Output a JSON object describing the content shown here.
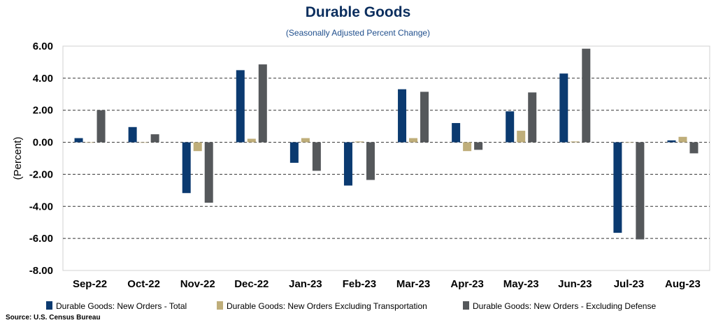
{
  "chart_data": {
    "type": "bar",
    "title": "Durable Goods",
    "subtitle": "(Seasonally Adjusted Percent Change)",
    "ylabel": "(Percent)",
    "xlabel": "",
    "ylim": [
      -8,
      6
    ],
    "yticks": [
      "6.00",
      "4.00",
      "2.00",
      "0.00",
      "-2.00",
      "-4.00",
      "-6.00",
      "-8.00"
    ],
    "ytick_values": [
      6,
      4,
      2,
      0,
      -2,
      -4,
      -6,
      -8
    ],
    "grid": true,
    "legend_position": "bottom",
    "categories": [
      "Sep-22",
      "Oct-22",
      "Nov-22",
      "Dec-22",
      "Jan-23",
      "Feb-23",
      "Mar-23",
      "Apr-23",
      "May-23",
      "Jun-23",
      "Jul-23",
      "Aug-23"
    ],
    "series": [
      {
        "name": "Durable Goods: New Orders - Total",
        "color": "#0b3a70",
        "values": [
          0.26,
          0.95,
          -3.17,
          4.5,
          -1.28,
          -2.7,
          3.31,
          1.2,
          1.93,
          4.29,
          -5.65,
          0.12
        ]
      },
      {
        "name": "Durable Goods: New Orders Excluding Transportation",
        "color": "#bfae7a",
        "values": [
          0.0,
          0.0,
          -0.55,
          0.22,
          0.26,
          0.05,
          0.26,
          -0.55,
          0.72,
          0.05,
          0.0,
          0.34
        ]
      },
      {
        "name": "Durable Goods: New Orders - Excluding Defense",
        "color": "#55585b",
        "values": [
          2.0,
          0.5,
          -3.77,
          4.86,
          -1.78,
          -2.35,
          3.15,
          -0.47,
          3.11,
          5.84,
          -6.06,
          -0.69
        ]
      }
    ],
    "source": "Source: U.S. Census Bureau"
  }
}
